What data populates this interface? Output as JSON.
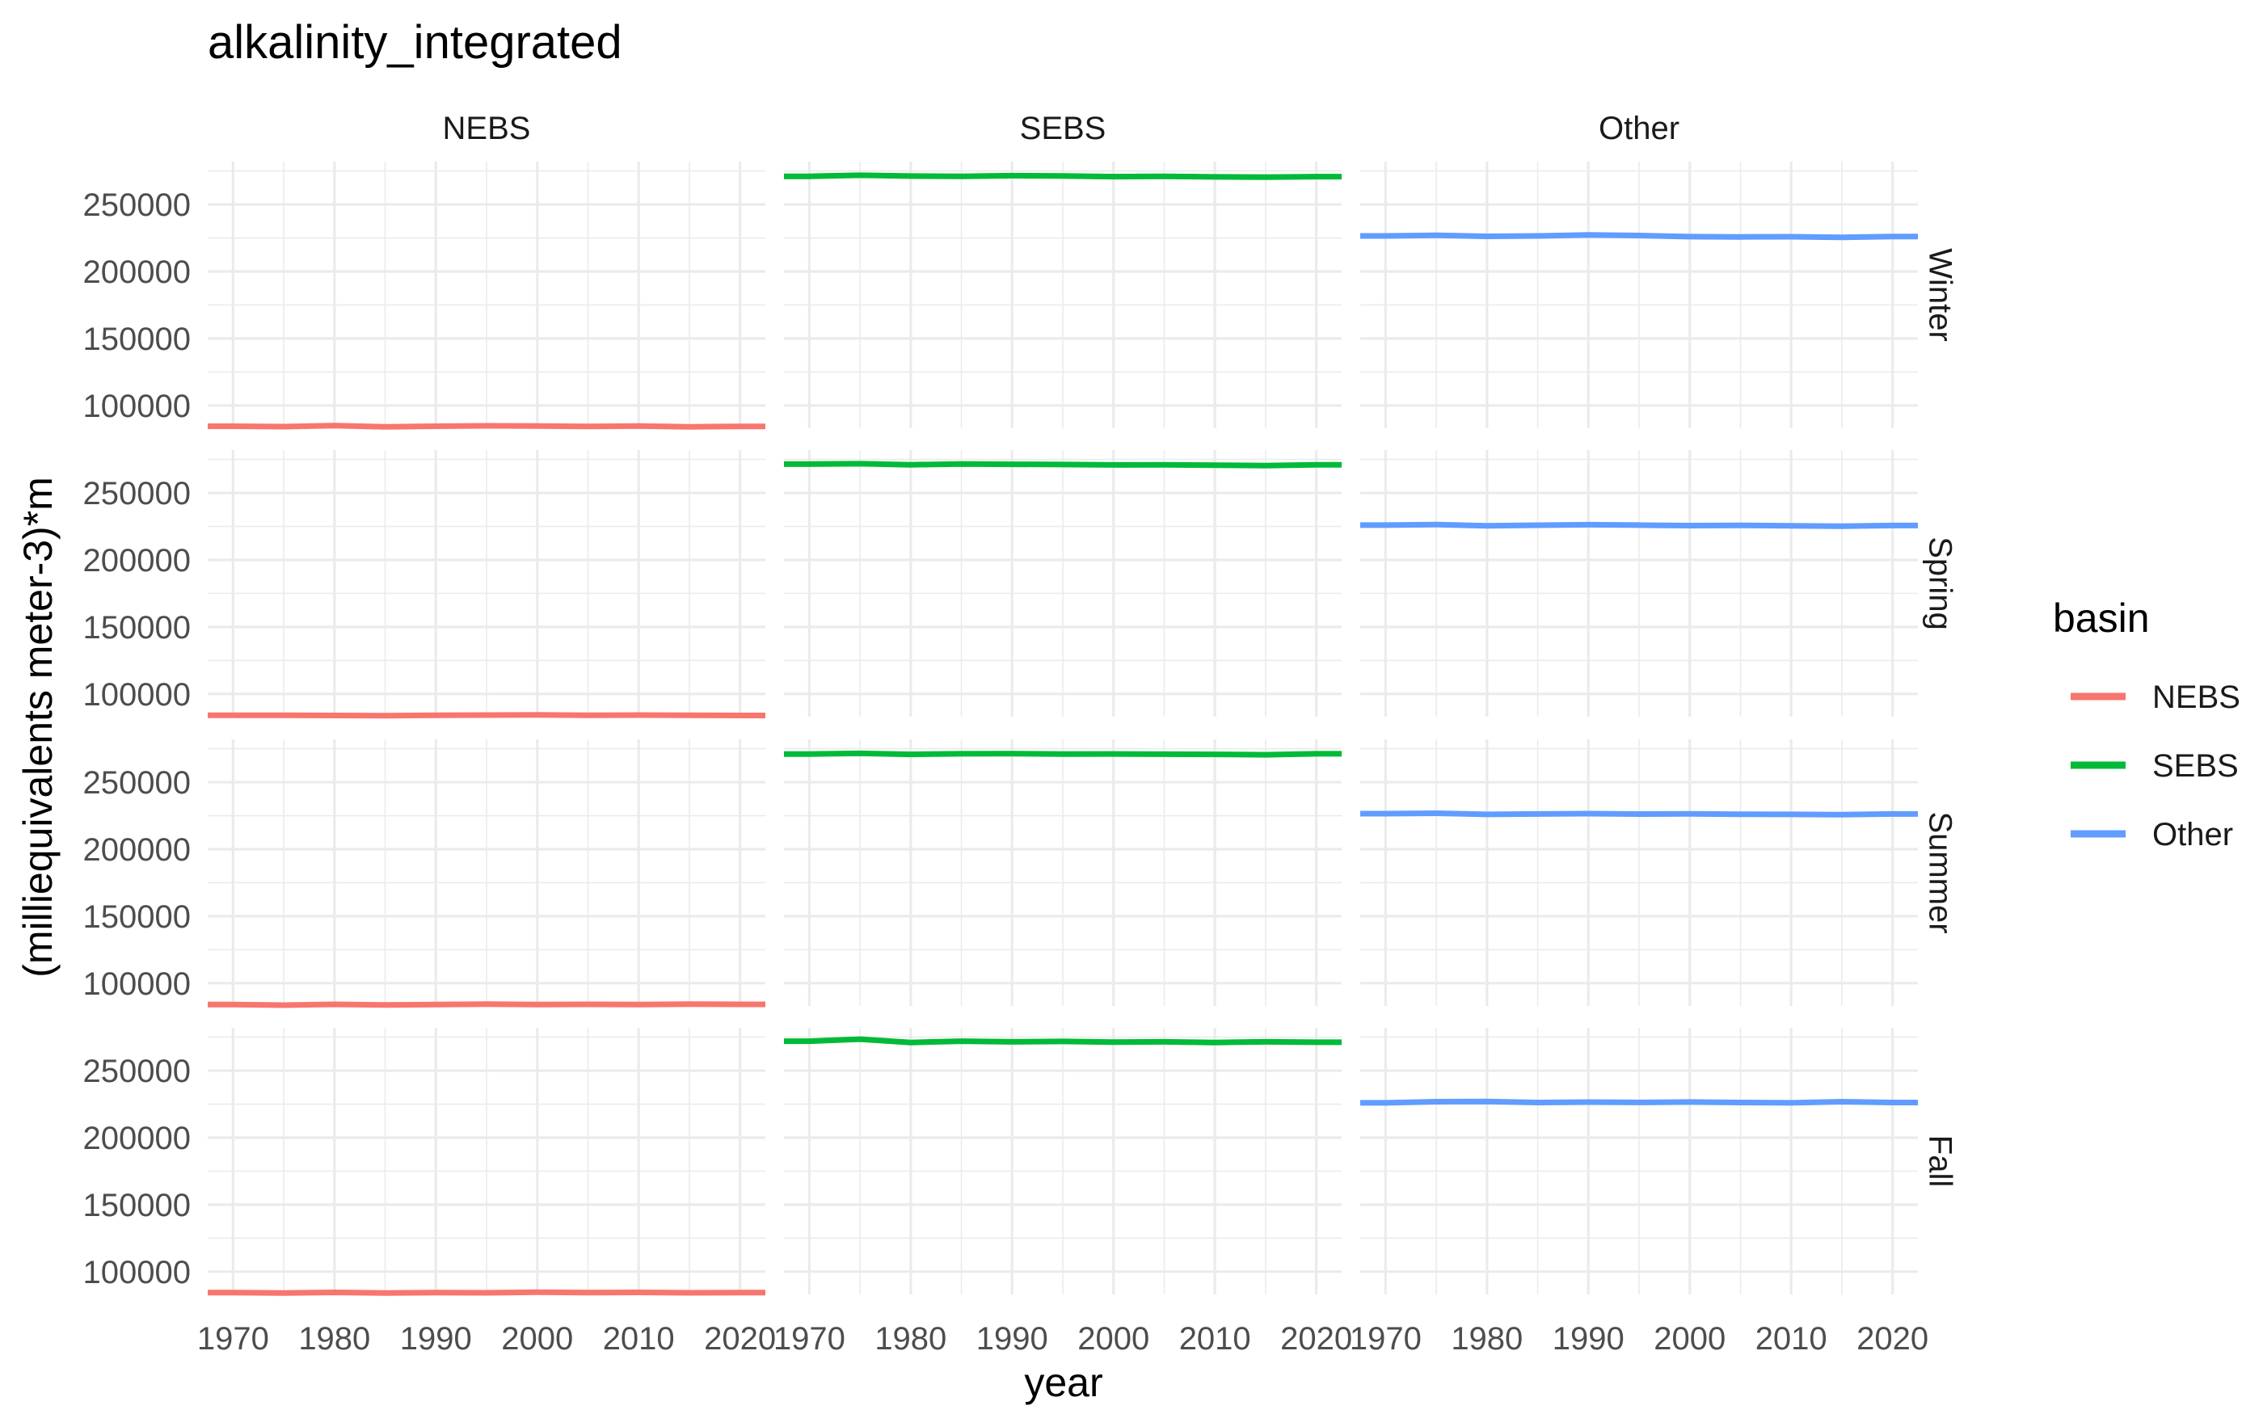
{
  "chart_data": {
    "type": "line",
    "title": "alkalinity_integrated",
    "xlabel": "year",
    "ylabel": "(milliequivalents meter-3)*m",
    "xlim": [
      1967.5,
      2022.5
    ],
    "ylim": [
      83000,
      282000
    ],
    "x_ticks": [
      1970,
      1980,
      1990,
      2000,
      2010,
      2020
    ],
    "x_tick_labels": [
      "1970",
      "1980",
      "1990",
      "2000",
      "2010",
      "2020"
    ],
    "y_ticks": [
      100000,
      150000,
      200000,
      250000
    ],
    "y_tick_labels": [
      "100000",
      "150000",
      "200000",
      "250000"
    ],
    "grid": true,
    "legend": {
      "title": "basin",
      "position": "right"
    },
    "columns": [
      "NEBS",
      "SEBS",
      "Other"
    ],
    "rows": [
      "Winter",
      "Spring",
      "Summer",
      "Fall"
    ],
    "x": [
      1970,
      1975,
      1980,
      1985,
      1990,
      1995,
      2000,
      2005,
      2010,
      2015,
      2020
    ],
    "series": [
      {
        "name": "NEBS",
        "color": "#F8766D",
        "values": {
          "Winter": [
            84500,
            84200,
            85000,
            84000,
            84500,
            84800,
            84600,
            84300,
            84700,
            84100,
            84400
          ],
          "Spring": [
            84000,
            84100,
            83900,
            83800,
            84000,
            84200,
            84300,
            84100,
            84200,
            84000,
            83900
          ],
          "Summer": [
            84000,
            83600,
            84200,
            83800,
            84000,
            84300,
            84100,
            84200,
            84000,
            84300,
            84200
          ],
          "Fall": [
            84300,
            84000,
            84500,
            84100,
            84400,
            84200,
            84600,
            84300,
            84500,
            84200,
            84300
          ]
        }
      },
      {
        "name": "SEBS",
        "color": "#00BA38",
        "values": {
          "Winter": [
            271000,
            271800,
            271200,
            271000,
            271500,
            271300,
            270800,
            271000,
            270600,
            270400,
            270800
          ],
          "Spring": [
            271500,
            271800,
            271000,
            271600,
            271400,
            271200,
            270900,
            271000,
            270700,
            270400,
            271000
          ],
          "Summer": [
            271000,
            271500,
            270800,
            271200,
            271300,
            271000,
            271100,
            270900,
            270800,
            270500,
            271200
          ],
          "Fall": [
            272000,
            273500,
            271000,
            272000,
            271500,
            271800,
            271300,
            271500,
            271000,
            271500,
            271200
          ]
        }
      },
      {
        "name": "Other",
        "color": "#619CFF",
        "values": {
          "Winter": [
            226500,
            227000,
            226200,
            226500,
            227300,
            226800,
            226000,
            225800,
            225900,
            225500,
            226100
          ],
          "Spring": [
            226000,
            226400,
            225500,
            225900,
            226300,
            226000,
            225600,
            225800,
            225500,
            225200,
            225700
          ],
          "Summer": [
            226500,
            226800,
            226000,
            226300,
            226500,
            226200,
            226400,
            226100,
            226000,
            225800,
            226300
          ],
          "Fall": [
            226000,
            226800,
            227000,
            226200,
            226500,
            226300,
            226600,
            226200,
            226000,
            226800,
            226200
          ]
        }
      }
    ]
  }
}
